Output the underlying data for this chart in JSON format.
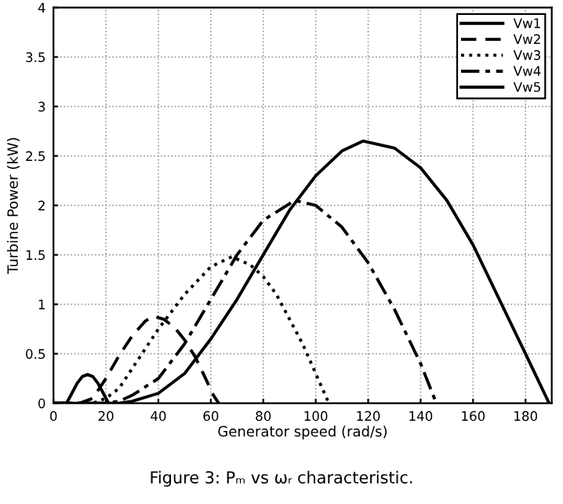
{
  "chart_data": {
    "type": "line",
    "xlabel": "Generator speed (rad/s)",
    "ylabel": "Turbine Power (kW)",
    "xlim": [
      0,
      190
    ],
    "xticks": [
      0,
      20,
      40,
      60,
      80,
      100,
      120,
      140,
      160,
      180
    ],
    "ylim": [
      0,
      4
    ],
    "yticks": [
      0,
      0.5,
      1,
      1.5,
      2,
      2.5,
      3,
      3.5,
      4
    ],
    "grid": true,
    "legend": "top right",
    "marker": "none",
    "annotations": [
      "Figure 3: Pₘ vs ωᵣ characteristic."
    ],
    "series": [
      {
        "name": "Vw1",
        "color": "#000000",
        "line_style": "solid",
        "x": [
          0,
          5,
          7,
          9,
          11,
          13,
          15,
          17,
          19,
          21
        ],
        "values": [
          0,
          0,
          0.1,
          0.2,
          0.27,
          0.29,
          0.27,
          0.2,
          0.1,
          0
        ]
      },
      {
        "name": "Vw2",
        "color": "#000000",
        "line_style": "dashed",
        "x": [
          0,
          10,
          15,
          20,
          25,
          30,
          35,
          38,
          42,
          46,
          50,
          54,
          58,
          61,
          63
        ],
        "values": [
          0,
          0,
          0.05,
          0.25,
          0.48,
          0.68,
          0.83,
          0.88,
          0.85,
          0.77,
          0.64,
          0.47,
          0.25,
          0.08,
          0
        ]
      },
      {
        "name": "Vw3",
        "color": "#000000",
        "line_style": "dotted",
        "x": [
          0,
          15,
          20,
          25,
          30,
          40,
          50,
          60,
          68,
          75,
          80,
          85,
          90,
          95,
          100,
          105
        ],
        "values": [
          0,
          0,
          0.05,
          0.15,
          0.35,
          0.75,
          1.1,
          1.38,
          1.48,
          1.4,
          1.28,
          1.1,
          0.85,
          0.6,
          0.3,
          0
        ]
      },
      {
        "name": "Vw4",
        "color": "#000000",
        "line_style": "dashdot",
        "x": [
          0,
          20,
          25,
          30,
          40,
          50,
          60,
          70,
          80,
          92,
          100,
          110,
          120,
          130,
          140,
          146
        ],
        "values": [
          0,
          0,
          0.02,
          0.08,
          0.25,
          0.6,
          1.05,
          1.5,
          1.85,
          2.05,
          2.0,
          1.78,
          1.42,
          0.95,
          0.4,
          0
        ]
      },
      {
        "name": "Vw5",
        "color": "#000000",
        "line_style": "solid",
        "x": [
          0,
          25,
          30,
          40,
          50,
          60,
          70,
          80,
          90,
          100,
          110,
          118,
          130,
          140,
          150,
          160,
          170,
          180,
          189
        ],
        "values": [
          0,
          0,
          0.02,
          0.1,
          0.3,
          0.65,
          1.05,
          1.5,
          1.95,
          2.3,
          2.55,
          2.65,
          2.58,
          2.38,
          2.05,
          1.6,
          1.05,
          0.5,
          0
        ]
      }
    ]
  }
}
